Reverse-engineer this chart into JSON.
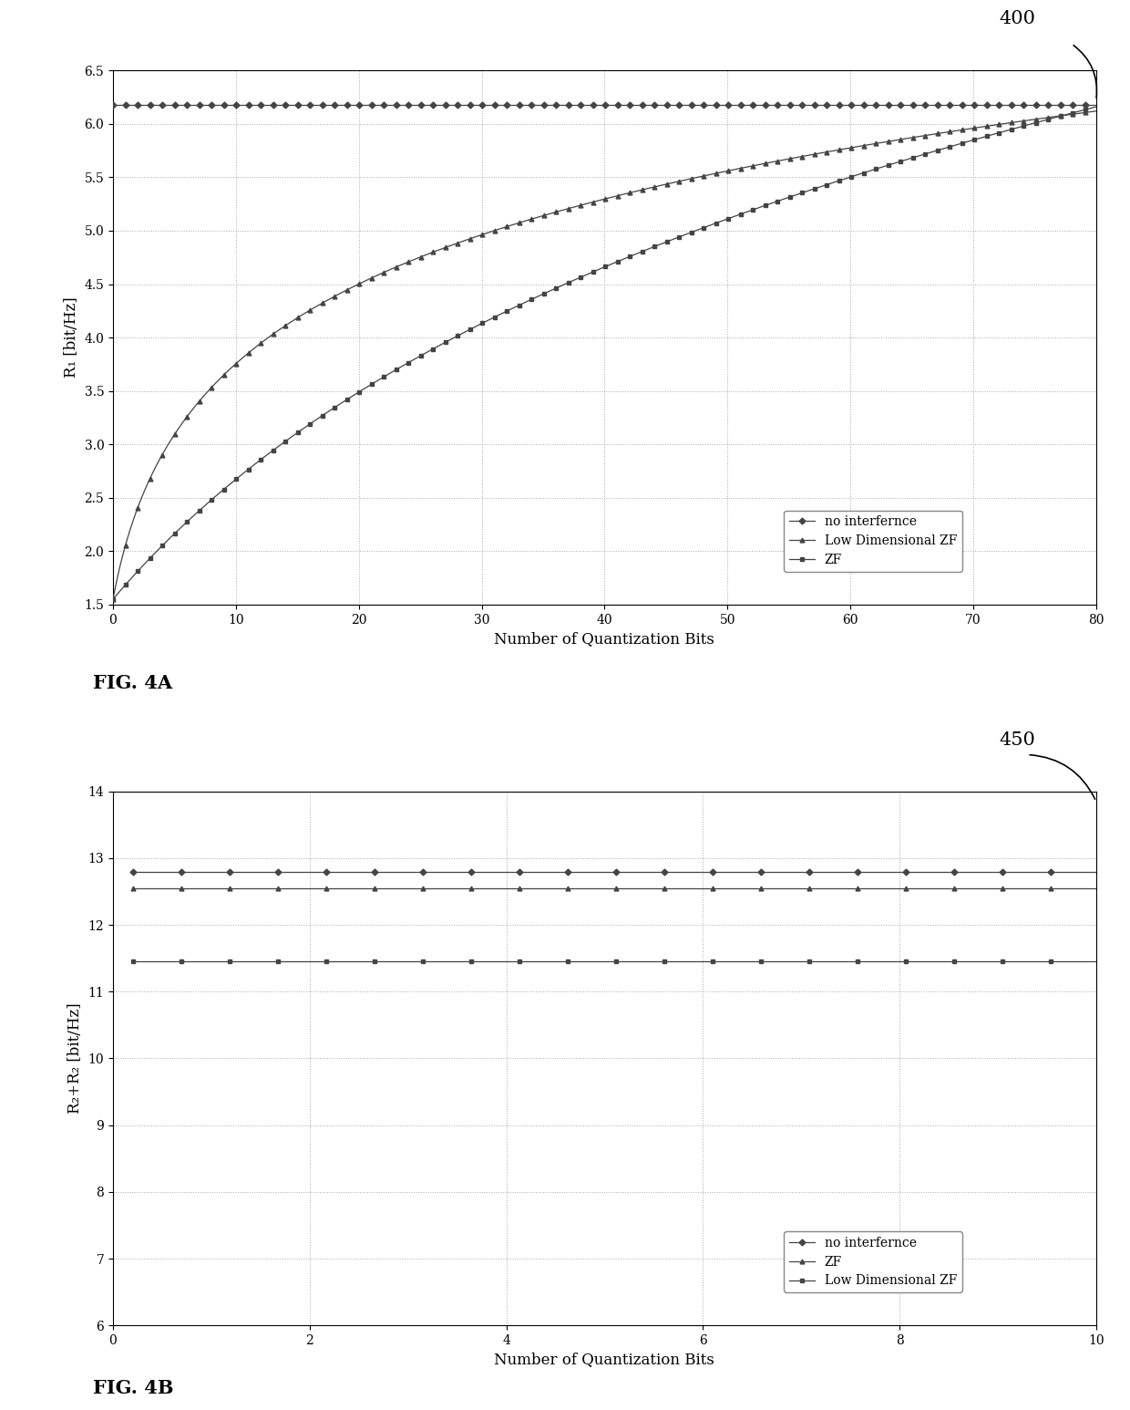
{
  "fig4a": {
    "xlabel": "Number of Quantization Bits",
    "ylabel": "R₁ [bit/Hz]",
    "xlim": [
      0,
      80
    ],
    "ylim": [
      1.5,
      6.5
    ],
    "xticks": [
      0,
      10,
      20,
      30,
      40,
      50,
      60,
      70,
      80
    ],
    "yticks": [
      1.5,
      2.0,
      2.5,
      3.0,
      3.5,
      4.0,
      4.5,
      5.0,
      5.5,
      6.0,
      6.5
    ],
    "label_400": "400",
    "fig_label": "FIG. 4A",
    "no_interference_val": 6.18,
    "no_interference_label": "no interfernce",
    "low_dim_zf_label": "Low Dimensional ZF",
    "zf_label": "ZF",
    "low_dim_zf_c": 0.5,
    "zf_c": 0.045,
    "start_y": 1.55,
    "low_dim_sat": 6.12,
    "zf_sat": 6.16
  },
  "fig4b": {
    "xlabel": "Number of Quantization Bits",
    "ylabel": "R₂+R₂ [bit/Hz]",
    "xlim": [
      0,
      10
    ],
    "ylim": [
      6,
      14
    ],
    "xticks": [
      0,
      2,
      4,
      6,
      8,
      10
    ],
    "yticks": [
      6,
      7,
      8,
      9,
      10,
      11,
      12,
      13,
      14
    ],
    "label_450": "450",
    "fig_label": "FIG. 4B",
    "no_interference_val": 12.8,
    "zf_val": 12.55,
    "low_dim_zf_val": 11.45,
    "no_interference_label": "no interfernce",
    "zf_label": "ZF",
    "low_dim_zf_label": "Low Dimensional ZF"
  },
  "bg": "#ffffff",
  "lc": "#444444",
  "gc": "#aaaaaa"
}
